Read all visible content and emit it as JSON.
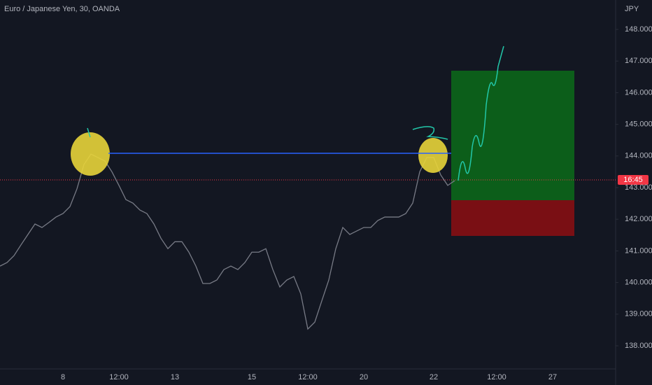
{
  "chart_data": {
    "type": "line",
    "title": "Euro / Japanese Yen, 30, OANDA",
    "y_axis_label": "JPY",
    "price_label": "16:45",
    "categories": [
      null,
      null,
      null,
      null,
      null,
      null,
      null,
      null,
      null,
      "8",
      null,
      null,
      null,
      null,
      null,
      null,
      null,
      "12:00",
      null,
      null,
      null,
      null,
      null,
      null,
      null,
      "13",
      null,
      null,
      null,
      null,
      null,
      null,
      null,
      null,
      null,
      null,
      "15",
      null,
      null,
      null,
      null,
      null,
      null,
      null,
      "12:00",
      null,
      null,
      null,
      null,
      null,
      null,
      null,
      "20",
      null,
      null,
      null,
      null,
      null,
      null,
      null,
      null,
      null,
      "22",
      null,
      null,
      null,
      null,
      null,
      null,
      null,
      null,
      "12:00",
      null,
      null,
      null,
      null,
      null,
      null,
      null,
      "27",
      null,
      null,
      null,
      null,
      null,
      null,
      null,
      null,
      null
    ],
    "values": [
      140.52,
      140.63,
      140.85,
      141.19,
      141.52,
      141.85,
      141.74,
      141.9,
      142.07,
      142.18,
      142.4,
      142.96,
      143.73,
      144.06,
      143.95,
      143.84,
      143.5,
      143.07,
      142.62,
      142.51,
      142.29,
      142.18,
      141.85,
      141.4,
      141.07,
      141.29,
      141.29,
      140.96,
      140.52,
      139.97,
      139.97,
      140.08,
      140.41,
      140.52,
      140.41,
      140.63,
      140.96,
      140.96,
      141.07,
      140.41,
      139.86,
      140.08,
      140.19,
      139.64,
      138.53,
      138.75,
      139.42,
      140.08,
      141.07,
      141.74,
      141.52,
      141.63,
      141.74,
      141.74,
      141.96,
      142.07,
      142.07,
      142.07,
      142.18,
      142.51,
      143.5,
      143.95,
      143.95,
      143.4,
      143.07,
      143.22,
      null,
      null,
      null,
      null,
      null,
      null,
      null,
      null,
      null,
      null,
      null,
      null,
      null,
      null,
      null,
      null,
      null,
      null,
      null,
      null,
      null,
      null,
      null
    ],
    "color": "#787b86",
    "ylim": [
      137.27,
      148.93
    ],
    "yticks": [
      {
        "value": 138,
        "label": "138.000"
      },
      {
        "value": 139,
        "label": "139.000"
      },
      {
        "value": 140,
        "label": "140.000"
      },
      {
        "value": 141,
        "label": "141.000"
      },
      {
        "value": 142,
        "label": "142.000"
      },
      {
        "value": 143,
        "label": "143.000"
      },
      {
        "value": 144,
        "label": "144.000"
      },
      {
        "value": 145,
        "label": "145.000"
      },
      {
        "value": 146,
        "label": "146.000"
      },
      {
        "value": 147,
        "label": "147.000"
      },
      {
        "value": 148,
        "label": "148.000"
      }
    ],
    "grid": false
  }
}
